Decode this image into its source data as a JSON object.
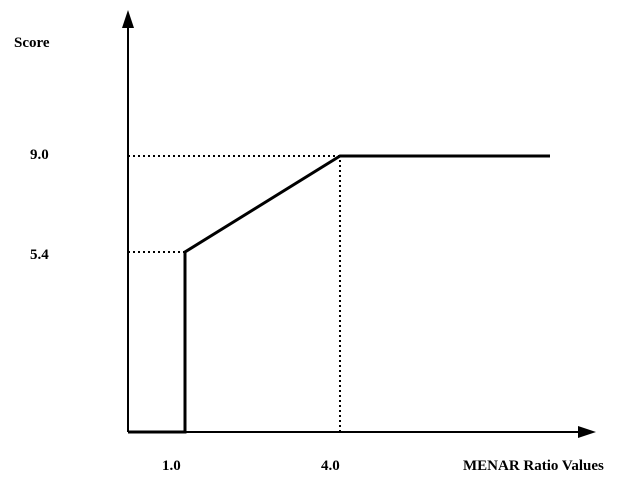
{
  "chart_data": {
    "type": "line",
    "ylabel": "Score",
    "xlabel": "MENAR Ratio Values",
    "x_ticks": [
      "1.0",
      "4.0"
    ],
    "y_ticks": [
      "5.4",
      "9.0"
    ],
    "series": [
      {
        "points": [
          {
            "x": 0.0,
            "y": 0
          },
          {
            "x": 1.0,
            "y": 0
          },
          {
            "x": 1.0,
            "y": 5.4
          },
          {
            "x": 4.0,
            "y": 9.0
          },
          {
            "x": 7.5,
            "y": 9.0
          }
        ]
      }
    ],
    "reference_lines": [
      {
        "from": {
          "x": 0,
          "y": 5.4
        },
        "to": {
          "x": 1.0,
          "y": 5.4
        },
        "style": "dotted"
      },
      {
        "from": {
          "x": 1.0,
          "y": 0
        },
        "to": {
          "x": 1.0,
          "y": 5.4
        },
        "style": "dotted"
      },
      {
        "from": {
          "x": 0,
          "y": 9.0
        },
        "to": {
          "x": 4.0,
          "y": 9.0
        },
        "style": "dotted"
      },
      {
        "from": {
          "x": 4.0,
          "y": 0
        },
        "to": {
          "x": 4.0,
          "y": 9.0
        },
        "style": "dotted"
      }
    ],
    "grid": false
  }
}
